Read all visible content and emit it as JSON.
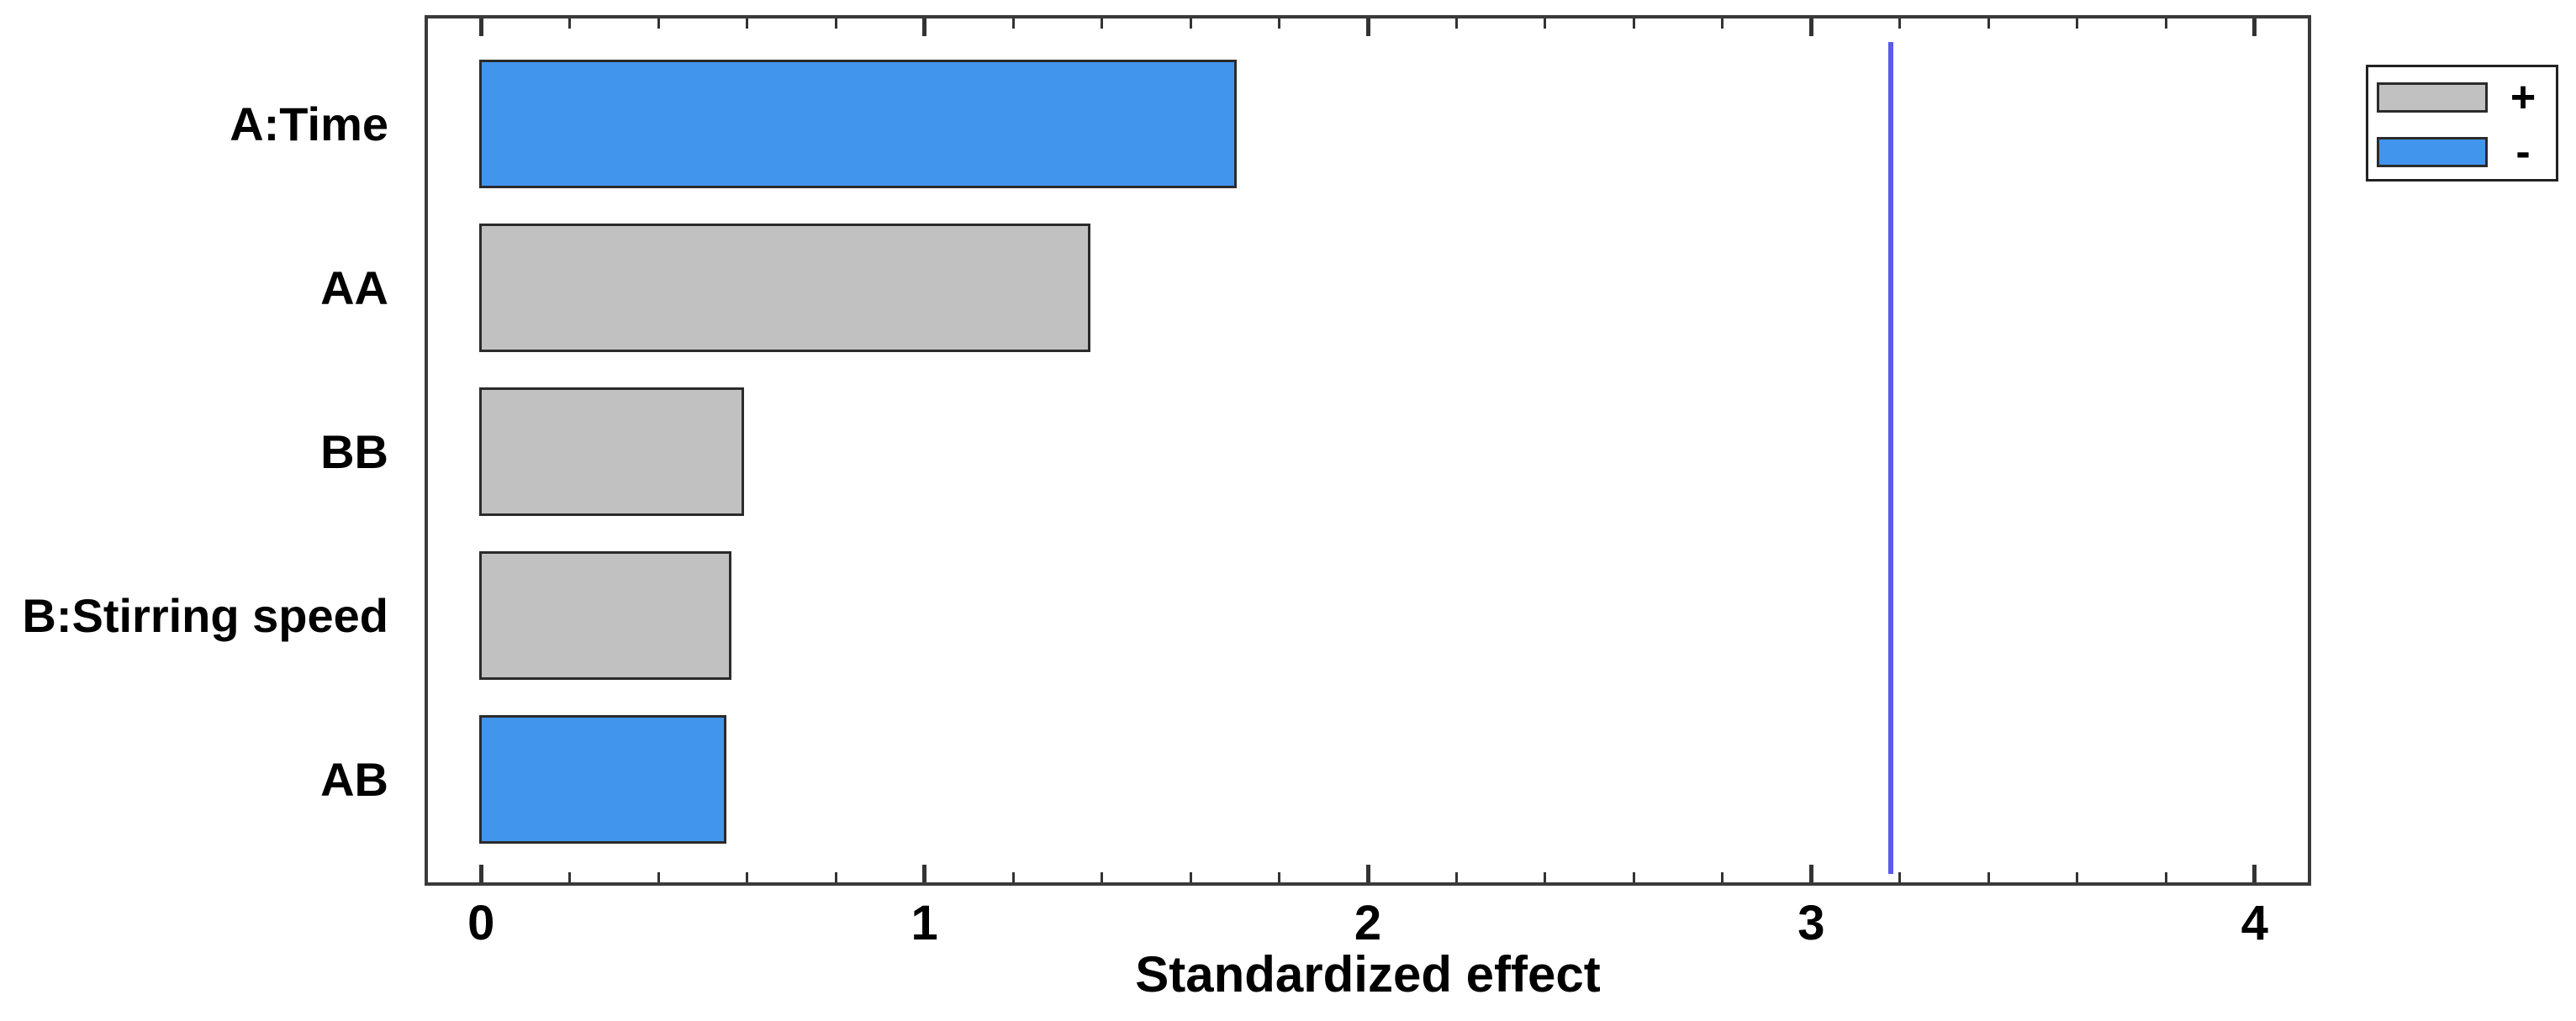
{
  "chart_data": {
    "type": "bar",
    "orientation": "horizontal",
    "title": "",
    "xlabel": "Standardized effect",
    "categories": [
      "A:Time",
      "AA",
      "BB",
      "B:Stirring speed",
      "AB"
    ],
    "values": [
      1.7,
      1.37,
      0.59,
      0.56,
      0.55
    ],
    "signs": [
      "-",
      "+",
      "+",
      "+",
      "-"
    ],
    "x_major_ticks": [
      0,
      1,
      2,
      3,
      4
    ],
    "x_minor_step": 0.2,
    "xlim": [
      -0.12,
      4.12
    ],
    "grid": "off",
    "legend_position": "top-right",
    "reference_line": {
      "value": 3.18,
      "color": "#5B5BEE"
    },
    "legend": {
      "entries": [
        {
          "label": "+",
          "color": "#C1C1C1"
        },
        {
          "label": "-",
          "color": "#4295EC"
        }
      ]
    },
    "colors": {
      "positive_fill": "#C1C1C1",
      "negative_fill": "#4295EC",
      "bar_border": "#2B2B2B",
      "frame_border": "#3A3A3A",
      "tick": "#333333",
      "text": "#000000",
      "background": "#FFFFFF"
    }
  }
}
